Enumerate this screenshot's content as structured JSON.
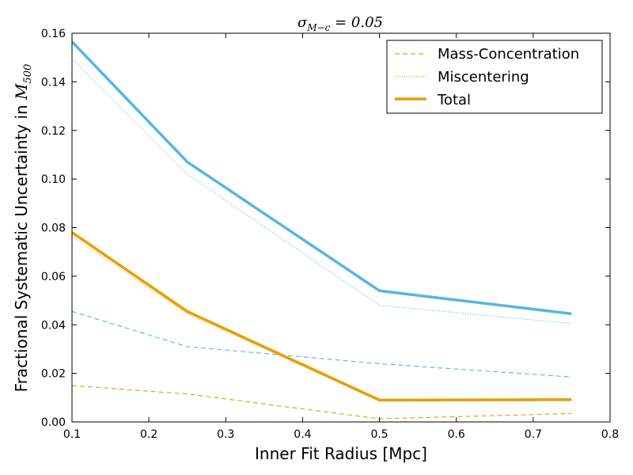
{
  "chart_data": {
    "type": "line",
    "title": "σ_{M−c} = 0.05",
    "title_parts": {
      "main": "σ",
      "sub": "M−c",
      "rest": " = 0.05"
    },
    "xlabel": "Inner Fit Radius [Mpc]",
    "ylabel_parts": {
      "main": "Fractional Systematic Uncertainty in ",
      "var": "M",
      "sub": "500"
    },
    "xlim": [
      0.1,
      0.8
    ],
    "ylim": [
      0.0,
      0.16
    ],
    "xticks": [
      0.1,
      0.2,
      0.3,
      0.4,
      0.5,
      0.6,
      0.7,
      0.8
    ],
    "xtick_labels": [
      "0.1",
      "0.2",
      "0.3",
      "0.4",
      "0.5",
      "0.6",
      "0.7",
      "0.8"
    ],
    "yticks": [
      0.0,
      0.02,
      0.04,
      0.06,
      0.08,
      0.1,
      0.12,
      0.14,
      0.16
    ],
    "ytick_labels": [
      "0.00",
      "0.02",
      "0.04",
      "0.06",
      "0.08",
      "0.10",
      "0.12",
      "0.14",
      "0.16"
    ],
    "grid": false,
    "legend_position": "top-right",
    "legend": [
      {
        "label": "Mass-Concentration",
        "style": "dashed",
        "color": "#e69f00"
      },
      {
        "label": "Miscentering",
        "style": "dotted",
        "color": "#e69f00"
      },
      {
        "label": "Total",
        "style": "solid",
        "color": "#e69f00"
      }
    ],
    "x": [
      0.1,
      0.25,
      0.5,
      0.75
    ],
    "series": [
      {
        "group": "blue",
        "style": "solid",
        "color": "#56b4e9",
        "values": [
          0.1565,
          0.107,
          0.054,
          0.0445
        ]
      },
      {
        "group": "blue",
        "style": "dotted",
        "color": "#56b4e9",
        "values": [
          0.1495,
          0.102,
          0.048,
          0.0405
        ]
      },
      {
        "group": "blue",
        "style": "dashed",
        "color": "#56b4e9",
        "values": [
          0.0455,
          0.031,
          0.024,
          0.0185
        ]
      },
      {
        "group": "orange",
        "style": "solid",
        "color": "#e69f00",
        "values": [
          0.078,
          0.0455,
          0.009,
          0.0092
        ]
      },
      {
        "group": "orange",
        "style": "dotted",
        "color": "#e69f00",
        "values": [
          0.0765,
          0.0445,
          0.0087,
          0.0087
        ]
      },
      {
        "group": "orange",
        "style": "dashed",
        "color": "#e69f00",
        "values": [
          0.015,
          0.0115,
          0.0013,
          0.0035
        ]
      }
    ]
  }
}
